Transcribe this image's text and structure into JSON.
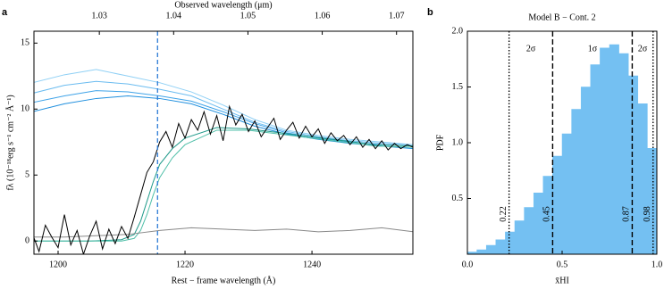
{
  "chart_data": [
    {
      "type": "line",
      "panel": "a",
      "xlabel": "Rest − frame wavelength (Å)",
      "ylabel": "fλ (10⁻¹⁸erg s⁻¹ cm⁻² Å⁻¹)",
      "x2label": "Observed wavelength (μm)",
      "xlim": [
        1196.2,
        1255.9
      ],
      "xticks": [
        1200,
        1220,
        1240
      ],
      "ylim": [
        -1.0,
        15.9
      ],
      "yticks": [
        0,
        5,
        10,
        15
      ],
      "x2lim": [
        1.0212,
        1.0722
      ],
      "x2ticks": [
        1.03,
        1.04,
        1.05,
        1.06,
        1.07
      ],
      "vline": 1215.67,
      "vline_color": "#2b7bd6",
      "series": [
        {
          "color": "#6bbcf0",
          "x": [
            1196,
            1201,
            1206,
            1211,
            1216,
            1221,
            1226,
            1231,
            1236,
            1241,
            1246,
            1251,
            1256
          ],
          "values": [
            11.2,
            11.8,
            12.1,
            11.9,
            11.5,
            11.0,
            10.0,
            9.0,
            8.3,
            7.9,
            7.6,
            7.4,
            7.3
          ]
        },
        {
          "color": "#3fa3e8",
          "x": [
            1196,
            1201,
            1206,
            1211,
            1216,
            1221,
            1226,
            1231,
            1236,
            1241,
            1246,
            1251,
            1256
          ],
          "values": [
            10.5,
            11.0,
            11.4,
            11.3,
            11.0,
            10.6,
            9.8,
            8.9,
            8.2,
            7.8,
            7.5,
            7.3,
            7.2
          ]
        },
        {
          "color": "#8fd0f5",
          "x": [
            1196,
            1201,
            1206,
            1211,
            1216,
            1221,
            1226,
            1231,
            1236,
            1241,
            1246,
            1251,
            1256
          ],
          "values": [
            12.0,
            12.6,
            13.0,
            12.5,
            12.0,
            11.3,
            10.3,
            9.2,
            8.4,
            8.0,
            7.7,
            7.5,
            7.3
          ]
        },
        {
          "color": "#1f8fde",
          "x": [
            1196,
            1201,
            1206,
            1211,
            1216,
            1221,
            1226,
            1231,
            1236,
            1241,
            1246,
            1251,
            1256
          ],
          "values": [
            9.8,
            10.4,
            10.8,
            11.0,
            10.8,
            10.4,
            9.6,
            8.7,
            8.1,
            7.7,
            7.4,
            7.2,
            7.0
          ]
        },
        {
          "color": "#1f9a8a",
          "x": [
            1196,
            1205,
            1210,
            1212,
            1213,
            1214,
            1215,
            1216,
            1218,
            1220,
            1225,
            1230,
            1235,
            1240,
            1245,
            1250,
            1256
          ],
          "values": [
            0,
            0,
            0.1,
            0.5,
            1.5,
            3.0,
            4.5,
            5.8,
            7.0,
            7.8,
            8.6,
            8.5,
            8.2,
            7.9,
            7.6,
            7.3,
            7.2
          ]
        },
        {
          "color": "#4fbfa8",
          "x": [
            1196,
            1205,
            1210,
            1212,
            1213,
            1214,
            1215,
            1216,
            1218,
            1220,
            1225,
            1230,
            1235,
            1240,
            1245,
            1250,
            1256
          ],
          "values": [
            0,
            0,
            0,
            0.2,
            0.8,
            2.0,
            3.5,
            4.8,
            6.3,
            7.3,
            8.4,
            8.4,
            8.1,
            7.8,
            7.5,
            7.2,
            7.1
          ]
        },
        {
          "color": "#888888",
          "x": [
            1196,
            1201,
            1206,
            1211,
            1216,
            1221,
            1226,
            1231,
            1236,
            1241,
            1246,
            1251,
            1256
          ],
          "values": [
            0.3,
            0.3,
            0.4,
            0.5,
            0.8,
            1.0,
            0.9,
            0.8,
            0.9,
            0.7,
            0.8,
            1.0,
            0.7
          ]
        },
        {
          "color": "#000000",
          "x": [
            1196,
            1197,
            1198,
            1199,
            1200,
            1201,
            1202,
            1203,
            1204,
            1205,
            1206,
            1207,
            1208,
            1209,
            1210,
            1211,
            1212,
            1213,
            1214,
            1215,
            1216,
            1217,
            1218,
            1219,
            1220,
            1221,
            1222,
            1223,
            1224,
            1225,
            1226,
            1227,
            1228,
            1229,
            1230,
            1231,
            1232,
            1233,
            1234,
            1235,
            1236,
            1237,
            1238,
            1239,
            1240,
            1241,
            1242,
            1243,
            1244,
            1245,
            1246,
            1247,
            1248,
            1249,
            1250,
            1251,
            1252,
            1253,
            1254,
            1255,
            1256
          ],
          "values": [
            0.5,
            -0.8,
            1.2,
            0.3,
            -0.5,
            2.0,
            -0.3,
            0.8,
            -1.0,
            0.4,
            1.5,
            -0.6,
            0.9,
            -0.2,
            1.1,
            0.2,
            1.8,
            3.5,
            5.2,
            6.0,
            7.5,
            8.3,
            7.1,
            8.9,
            7.8,
            9.2,
            8.4,
            9.8,
            8.1,
            9.5,
            7.6,
            10.2,
            8.8,
            9.6,
            8.3,
            9.1,
            7.9,
            8.6,
            9.3,
            7.7,
            8.4,
            9.0,
            7.8,
            8.7,
            7.9,
            8.5,
            7.4,
            8.2,
            7.6,
            8.0,
            7.3,
            7.9,
            7.1,
            7.7,
            7.0,
            7.6,
            6.9,
            7.4,
            7.0,
            7.3,
            7.1
          ]
        }
      ]
    },
    {
      "type": "histogram",
      "panel": "b",
      "title": "Model B − Cont. 2",
      "xlabel": "x̄HI",
      "ylabel": "PDF",
      "color": "#74c0f2",
      "xlim": [
        0,
        1
      ],
      "xticks": [
        {
          "value": 0,
          "label": "0.0"
        },
        {
          "value": 0.5,
          "label": "0.5"
        },
        {
          "value": 1,
          "label": "1.0"
        }
      ],
      "ylim": [
        0,
        2
      ],
      "yticks": [
        0.5,
        {
          "value": 1,
          "label": "1.0"
        },
        1.5,
        {
          "value": 2,
          "label": "2.0"
        }
      ],
      "bins": [
        0,
        0.05,
        0.1,
        0.15,
        0.2,
        0.25,
        0.3,
        0.35,
        0.4,
        0.45,
        0.5,
        0.55,
        0.6,
        0.65,
        0.7,
        0.75,
        0.8,
        0.85,
        0.9,
        0.95,
        1.0
      ],
      "values": [
        0.02,
        0.04,
        0.08,
        0.13,
        0.2,
        0.3,
        0.42,
        0.55,
        0.7,
        0.88,
        1.08,
        1.3,
        1.5,
        1.7,
        1.85,
        1.88,
        1.8,
        1.6,
        1.35,
        0.95
      ],
      "vlines": [
        {
          "x": 0.22,
          "label": "0.22",
          "style": "dotted"
        },
        {
          "x": 0.45,
          "label": "0.45",
          "style": "dashed"
        },
        {
          "x": 0.87,
          "label": "0.87",
          "style": "dashed"
        },
        {
          "x": 0.98,
          "label": "0.98",
          "style": "dotted"
        }
      ],
      "annotations": [
        "2σ",
        "1σ",
        "2σ"
      ]
    }
  ]
}
